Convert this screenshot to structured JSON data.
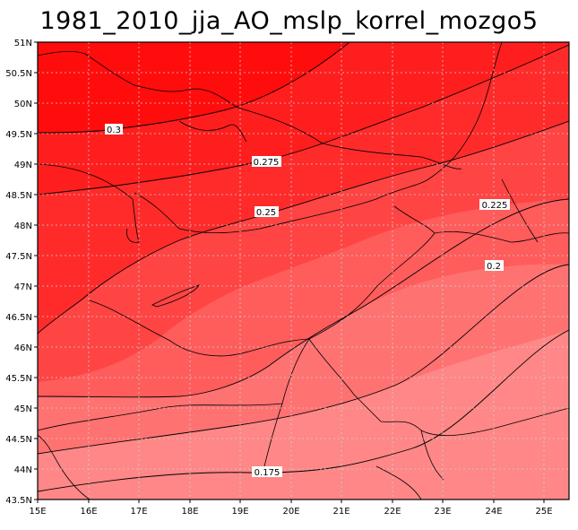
{
  "title": "1981_2010_jja_AO_mslp_korrel_mozgo5",
  "map": {
    "lon_ticks": [
      "15E",
      "16E",
      "17E",
      "18E",
      "19E",
      "20E",
      "21E",
      "22E",
      "23E",
      "24E",
      "25E"
    ],
    "lat_ticks": [
      "51N",
      "50.5N",
      "50N",
      "49.5N",
      "49N",
      "48.5N",
      "48N",
      "47.5N",
      "47N",
      "46.5N",
      "46N",
      "45.5N",
      "45N",
      "44.5N",
      "44N",
      "43.5N"
    ],
    "lon_range": [
      15,
      25.5
    ],
    "lat_range": [
      43.5,
      51
    ],
    "contour_levels": [
      "0.3",
      "0.275",
      "0.25",
      "0.225",
      "0.2",
      "0.175"
    ],
    "band_colors": [
      "#ff0d0d",
      "#ff2b2b",
      "#ff4444",
      "#ff5c5c",
      "#ff7272",
      "#ff8787"
    ]
  }
}
